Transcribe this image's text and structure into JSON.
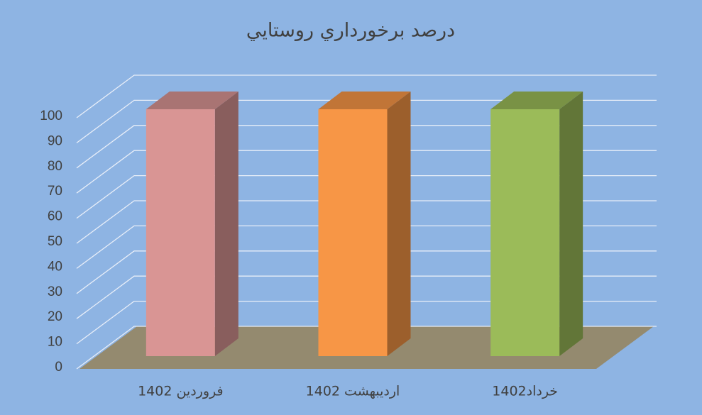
{
  "chart_data": {
    "type": "bar3d",
    "title": "درصد برخورداري روستايي",
    "categories": [
      "فروردين 1402",
      "ارديبهشت 1402",
      "خرداد1402"
    ],
    "values": [
      100,
      100,
      100
    ],
    "colors": [
      "#d99594",
      "#f79646",
      "#9bbb59"
    ],
    "ylim": [
      0,
      100
    ],
    "yticks": [
      0,
      10,
      20,
      30,
      40,
      50,
      60,
      70,
      80,
      90,
      100
    ],
    "grid": true
  }
}
